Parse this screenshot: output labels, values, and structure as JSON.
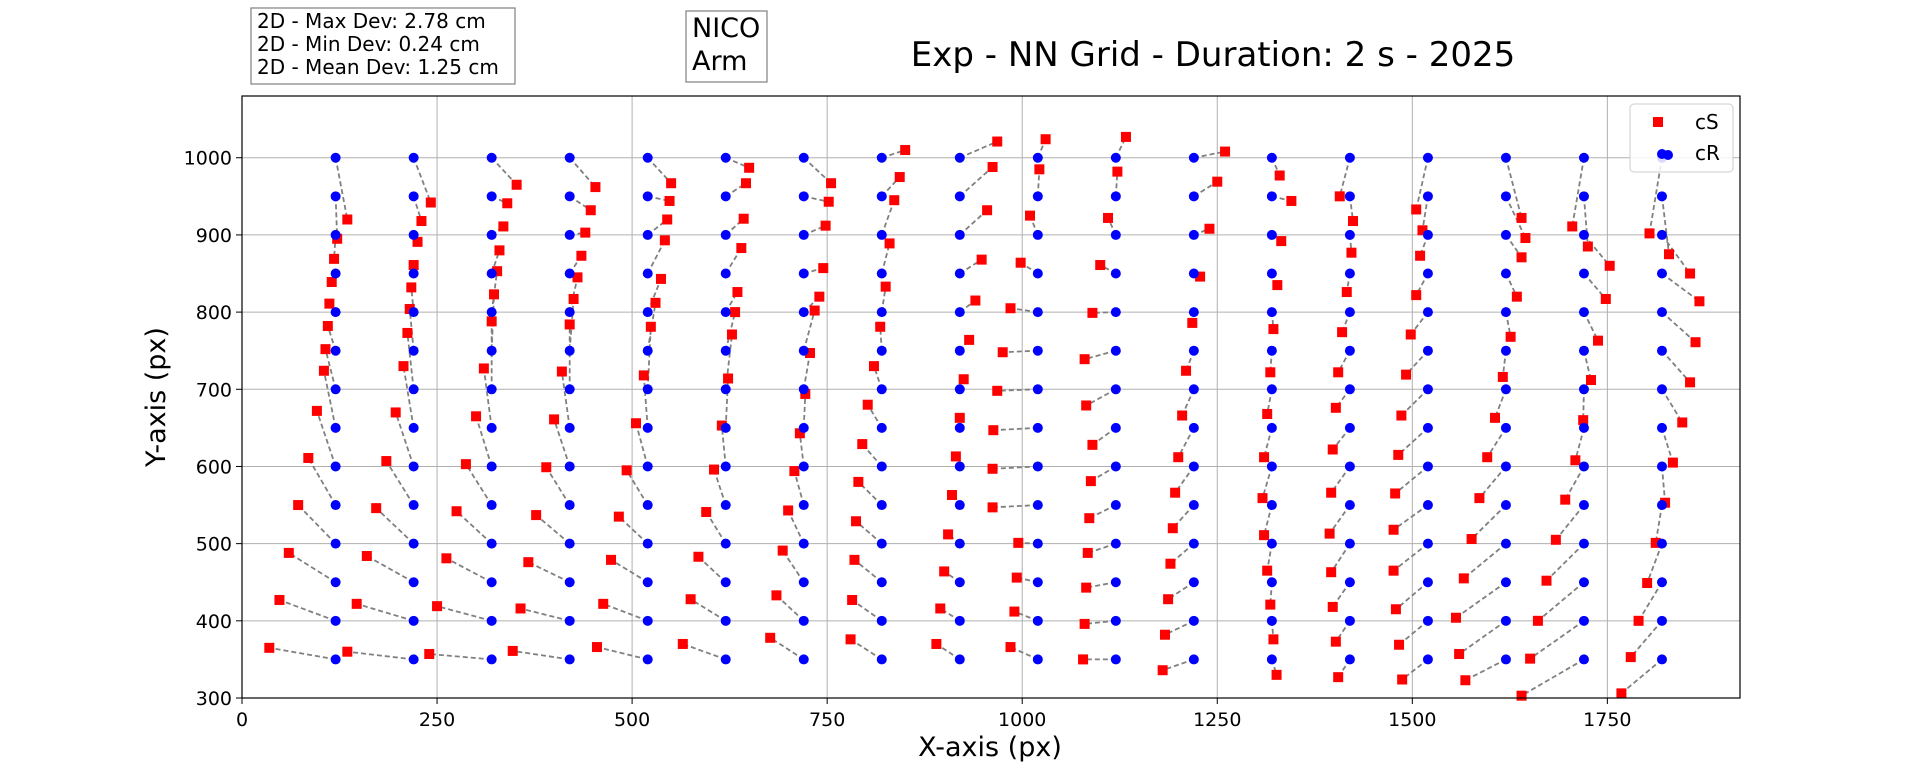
{
  "chart_data": {
    "type": "scatter",
    "title": "Exp - NN Grid - Duration: 2 s - 2025",
    "xlabel": "X-axis (px)",
    "ylabel": "Y-axis (px)",
    "xlim": [
      0,
      1920
    ],
    "ylim": [
      300,
      1080
    ],
    "grid": true,
    "legend_position": "top-right",
    "x_ticks": [
      0,
      250,
      500,
      750,
      1000,
      1250,
      1500,
      1750
    ],
    "y_ticks": [
      300,
      400,
      500,
      600,
      700,
      800,
      900,
      1000
    ],
    "stats_box": [
      "2D - Max Dev: 2.78 cm",
      "2D - Min Dev: 0.24 cm",
      "2D - Mean Dev: 1.25 cm"
    ],
    "label_box": [
      "NICO",
      "Arm"
    ],
    "colors": {
      "cS": "#ff0000",
      "cR": "#0000ff",
      "deviation_line": "#808080",
      "grid": "#b0b0b0"
    },
    "connector": "dashed line from each cR point to its matching cS point",
    "series": [
      {
        "name": "cS",
        "marker": "square",
        "color": "#ff0000"
      },
      {
        "name": "cR",
        "marker": "circle",
        "color": "#0000ff"
      }
    ],
    "cR_x": [
      120,
      220,
      320,
      420,
      520,
      620,
      720,
      820,
      920,
      1020,
      1120,
      1220,
      1320,
      1420,
      1520,
      1620,
      1720,
      1820
    ],
    "cR_y": [
      350,
      400,
      450,
      500,
      550,
      600,
      650,
      700,
      750,
      800,
      850,
      900,
      950,
      1000
    ],
    "cS_columns": [
      [
        [
          35,
          365
        ],
        [
          48,
          427
        ],
        [
          60,
          488
        ],
        [
          72,
          550
        ],
        [
          85,
          611
        ],
        [
          96,
          672
        ],
        [
          105,
          724
        ],
        [
          107,
          752
        ],
        [
          110,
          782
        ],
        [
          112,
          811
        ],
        [
          115,
          839
        ],
        [
          118,
          869
        ],
        [
          122,
          895
        ],
        [
          135,
          920
        ]
      ],
      [
        [
          135,
          360
        ],
        [
          147,
          422
        ],
        [
          160,
          484
        ],
        [
          172,
          546
        ],
        [
          185,
          607
        ],
        [
          197,
          670
        ],
        [
          207,
          730
        ],
        [
          212,
          773
        ],
        [
          215,
          804
        ],
        [
          217,
          832
        ],
        [
          220,
          861
        ],
        [
          225,
          891
        ],
        [
          230,
          918
        ],
        [
          242,
          942
        ]
      ],
      [
        [
          240,
          357
        ],
        [
          250,
          419
        ],
        [
          262,
          481
        ],
        [
          275,
          542
        ],
        [
          287,
          603
        ],
        [
          300,
          665
        ],
        [
          310,
          727
        ],
        [
          320,
          788
        ],
        [
          323,
          823
        ],
        [
          327,
          853
        ],
        [
          330,
          880
        ],
        [
          335,
          911
        ],
        [
          340,
          941
        ],
        [
          352,
          965
        ]
      ],
      [
        [
          347,
          361
        ],
        [
          357,
          416
        ],
        [
          367,
          476
        ],
        [
          377,
          537
        ],
        [
          390,
          599
        ],
        [
          400,
          661
        ],
        [
          410,
          723
        ],
        [
          420,
          784
        ],
        [
          425,
          817
        ],
        [
          430,
          845
        ],
        [
          435,
          873
        ],
        [
          440,
          903
        ],
        [
          447,
          932
        ],
        [
          453,
          962
        ]
      ],
      [
        [
          455,
          366
        ],
        [
          463,
          422
        ],
        [
          473,
          479
        ],
        [
          483,
          535
        ],
        [
          493,
          595
        ],
        [
          505,
          656
        ],
        [
          515,
          718
        ],
        [
          524,
          781
        ],
        [
          530,
          812
        ],
        [
          537,
          843
        ],
        [
          542,
          893
        ],
        [
          545,
          920
        ],
        [
          548,
          944
        ],
        [
          550,
          967
        ]
      ],
      [
        [
          565,
          370
        ],
        [
          575,
          428
        ],
        [
          585,
          483
        ],
        [
          595,
          541
        ],
        [
          605,
          596
        ],
        [
          615,
          653
        ],
        [
          623,
          714
        ],
        [
          628,
          771
        ],
        [
          632,
          800
        ],
        [
          635,
          826
        ],
        [
          640,
          883
        ],
        [
          643,
          921
        ],
        [
          646,
          967
        ],
        [
          650,
          987
        ]
      ],
      [
        [
          677,
          378
        ],
        [
          685,
          433
        ],
        [
          693,
          491
        ],
        [
          700,
          543
        ],
        [
          708,
          594
        ],
        [
          715,
          643
        ],
        [
          722,
          694
        ],
        [
          728,
          747
        ],
        [
          734,
          802
        ],
        [
          740,
          820
        ],
        [
          745,
          857
        ],
        [
          748,
          912
        ],
        [
          752,
          943
        ],
        [
          755,
          967
        ]
      ],
      [
        [
          780,
          376
        ],
        [
          782,
          427
        ],
        [
          785,
          479
        ],
        [
          787,
          529
        ],
        [
          790,
          580
        ],
        [
          795,
          629
        ],
        [
          802,
          680
        ],
        [
          810,
          730
        ],
        [
          818,
          781
        ],
        [
          825,
          833
        ],
        [
          830,
          889
        ],
        [
          836,
          945
        ],
        [
          843,
          975
        ],
        [
          850,
          1010
        ]
      ],
      [
        [
          890,
          370
        ],
        [
          895,
          416
        ],
        [
          900,
          464
        ],
        [
          905,
          512
        ],
        [
          910,
          563
        ],
        [
          915,
          613
        ],
        [
          920,
          663
        ],
        [
          925,
          713
        ],
        [
          932,
          764
        ],
        [
          940,
          815
        ],
        [
          948,
          868
        ],
        [
          955,
          932
        ],
        [
          962,
          988
        ],
        [
          968,
          1021
        ]
      ],
      [
        [
          985,
          366
        ],
        [
          990,
          412
        ],
        [
          993,
          456
        ],
        [
          995,
          501
        ],
        [
          962,
          547
        ],
        [
          962,
          597
        ],
        [
          963,
          647
        ],
        [
          968,
          698
        ],
        [
          975,
          748
        ],
        [
          985,
          805
        ],
        [
          998,
          864
        ],
        [
          1010,
          925
        ],
        [
          1022,
          985
        ],
        [
          1030,
          1024
        ]
      ],
      [
        [
          1078,
          350
        ],
        [
          1080,
          396
        ],
        [
          1082,
          443
        ],
        [
          1084,
          488
        ],
        [
          1086,
          533
        ],
        [
          1088,
          581
        ],
        [
          1090,
          628
        ],
        [
          1082,
          679
        ],
        [
          1080,
          739
        ],
        [
          1090,
          799
        ],
        [
          1100,
          861
        ],
        [
          1110,
          922
        ],
        [
          1122,
          982
        ],
        [
          1133,
          1027
        ]
      ],
      [
        [
          1180,
          336
        ],
        [
          1183,
          382
        ],
        [
          1187,
          428
        ],
        [
          1190,
          474
        ],
        [
          1193,
          520
        ],
        [
          1196,
          566
        ],
        [
          1200,
          612
        ],
        [
          1205,
          666
        ],
        [
          1210,
          724
        ],
        [
          1218,
          786
        ],
        [
          1228,
          846
        ],
        [
          1240,
          908
        ],
        [
          1250,
          969
        ],
        [
          1260,
          1008
        ]
      ],
      [
        [
          1326,
          330
        ],
        [
          1322,
          376
        ],
        [
          1318,
          421
        ],
        [
          1314,
          465
        ],
        [
          1310,
          511
        ],
        [
          1308,
          559
        ],
        [
          1310,
          612
        ],
        [
          1314,
          668
        ],
        [
          1318,
          722
        ],
        [
          1322,
          778
        ],
        [
          1327,
          835
        ],
        [
          1332,
          892
        ],
        [
          1345,
          944
        ],
        [
          1330,
          977
        ]
      ],
      [
        [
          1405,
          327
        ],
        [
          1402,
          373
        ],
        [
          1398,
          418
        ],
        [
          1396,
          463
        ],
        [
          1394,
          513
        ],
        [
          1396,
          566
        ],
        [
          1398,
          622
        ],
        [
          1402,
          676
        ],
        [
          1405,
          722
        ],
        [
          1410,
          774
        ],
        [
          1416,
          826
        ],
        [
          1422,
          877
        ],
        [
          1424,
          918
        ],
        [
          1407,
          950
        ]
      ],
      [
        [
          1487,
          324
        ],
        [
          1483,
          369
        ],
        [
          1479,
          415
        ],
        [
          1476,
          465
        ],
        [
          1476,
          518
        ],
        [
          1478,
          565
        ],
        [
          1482,
          615
        ],
        [
          1486,
          666
        ],
        [
          1492,
          719
        ],
        [
          1498,
          771
        ],
        [
          1505,
          822
        ],
        [
          1510,
          873
        ],
        [
          1513,
          906
        ],
        [
          1505,
          933
        ]
      ],
      [
        [
          1568,
          323
        ],
        [
          1560,
          357
        ],
        [
          1556,
          404
        ],
        [
          1566,
          455
        ],
        [
          1576,
          506
        ],
        [
          1586,
          559
        ],
        [
          1596,
          612
        ],
        [
          1606,
          663
        ],
        [
          1616,
          716
        ],
        [
          1626,
          768
        ],
        [
          1634,
          820
        ],
        [
          1640,
          871
        ],
        [
          1645,
          896
        ],
        [
          1640,
          922
        ]
      ],
      [
        [
          1640,
          303
        ],
        [
          1651,
          351
        ],
        [
          1661,
          400
        ],
        [
          1672,
          452
        ],
        [
          1684,
          505
        ],
        [
          1696,
          557
        ],
        [
          1709,
          608
        ],
        [
          1719,
          660
        ],
        [
          1729,
          712
        ],
        [
          1738,
          763
        ],
        [
          1748,
          817
        ],
        [
          1753,
          860
        ],
        [
          1725,
          885
        ],
        [
          1705,
          911
        ]
      ],
      [
        [
          1768,
          306
        ],
        [
          1780,
          353
        ],
        [
          1790,
          400
        ],
        [
          1801,
          449
        ],
        [
          1812,
          501
        ],
        [
          1824,
          553
        ],
        [
          1834,
          605
        ],
        [
          1846,
          657
        ],
        [
          1856,
          709
        ],
        [
          1863,
          761
        ],
        [
          1868,
          814
        ],
        [
          1856,
          850
        ],
        [
          1829,
          875
        ],
        [
          1804,
          902
        ]
      ]
    ]
  }
}
